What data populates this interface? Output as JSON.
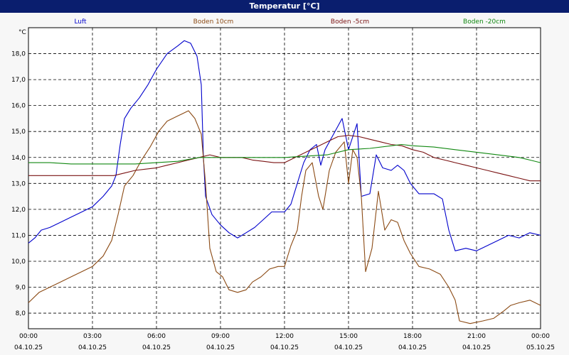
{
  "window": {
    "title": "Temperatur [°C]"
  },
  "chart_data": {
    "type": "line",
    "title": "Temperatur [°C]",
    "ylabel": "°C",
    "xlabel": "",
    "ylim": [
      7.4,
      19.0
    ],
    "xlim": [
      0,
      24
    ],
    "yticks": [
      {
        "v": 8.0,
        "label": "8,0"
      },
      {
        "v": 9.0,
        "label": "9,0"
      },
      {
        "v": 10.0,
        "label": "10,0"
      },
      {
        "v": 11.0,
        "label": "11,0"
      },
      {
        "v": 12.0,
        "label": "12,0"
      },
      {
        "v": 13.0,
        "label": "13,0"
      },
      {
        "v": 14.0,
        "label": "14,0"
      },
      {
        "v": 15.0,
        "label": "15,0"
      },
      {
        "v": 16.0,
        "label": "16,0"
      },
      {
        "v": 17.0,
        "label": "17,0"
      },
      {
        "v": 18.0,
        "label": "18,0"
      }
    ],
    "xticks": [
      {
        "v": 0,
        "time": "00:00",
        "date": "04.10.25"
      },
      {
        "v": 3,
        "time": "03:00",
        "date": "04.10.25"
      },
      {
        "v": 6,
        "time": "06:00",
        "date": "04.10.25"
      },
      {
        "v": 9,
        "time": "09:00",
        "date": "04.10.25"
      },
      {
        "v": 12,
        "time": "12:00",
        "date": "04.10.25"
      },
      {
        "v": 15,
        "time": "15:00",
        "date": "04.10.25"
      },
      {
        "v": 18,
        "time": "18:00",
        "date": "04.10.25"
      },
      {
        "v": 21,
        "time": "21:00",
        "date": "04.10.25"
      },
      {
        "v": 24,
        "time": "00:00",
        "date": "05.10.25"
      }
    ],
    "grid": true,
    "legend_position": "top",
    "series": [
      {
        "name": "Luft",
        "color": "#0000cc",
        "points": [
          [
            0,
            10.7
          ],
          [
            0.3,
            10.9
          ],
          [
            0.6,
            11.2
          ],
          [
            1.0,
            11.3
          ],
          [
            1.5,
            11.5
          ],
          [
            2.0,
            11.7
          ],
          [
            2.5,
            11.9
          ],
          [
            3.0,
            12.1
          ],
          [
            3.5,
            12.5
          ],
          [
            3.9,
            12.9
          ],
          [
            4.1,
            13.3
          ],
          [
            4.3,
            14.5
          ],
          [
            4.5,
            15.5
          ],
          [
            4.8,
            15.9
          ],
          [
            5.2,
            16.3
          ],
          [
            5.6,
            16.8
          ],
          [
            6.0,
            17.4
          ],
          [
            6.5,
            18.0
          ],
          [
            7.0,
            18.3
          ],
          [
            7.3,
            18.5
          ],
          [
            7.6,
            18.4
          ],
          [
            7.9,
            17.9
          ],
          [
            8.1,
            16.8
          ],
          [
            8.2,
            14.0
          ],
          [
            8.3,
            12.5
          ],
          [
            8.6,
            11.8
          ],
          [
            9.0,
            11.4
          ],
          [
            9.4,
            11.1
          ],
          [
            9.8,
            10.9
          ],
          [
            10.2,
            11.1
          ],
          [
            10.6,
            11.3
          ],
          [
            11.0,
            11.6
          ],
          [
            11.4,
            11.9
          ],
          [
            12.0,
            11.9
          ],
          [
            12.3,
            12.2
          ],
          [
            12.6,
            13.0
          ],
          [
            12.9,
            13.8
          ],
          [
            13.2,
            14.3
          ],
          [
            13.5,
            14.5
          ],
          [
            13.7,
            13.7
          ],
          [
            13.9,
            14.3
          ],
          [
            14.3,
            14.9
          ],
          [
            14.7,
            15.5
          ],
          [
            15.0,
            14.3
          ],
          [
            15.2,
            14.8
          ],
          [
            15.4,
            15.3
          ],
          [
            15.6,
            12.5
          ],
          [
            16.0,
            12.6
          ],
          [
            16.3,
            14.1
          ],
          [
            16.6,
            13.6
          ],
          [
            17.0,
            13.5
          ],
          [
            17.3,
            13.7
          ],
          [
            17.6,
            13.5
          ],
          [
            17.9,
            13.0
          ],
          [
            18.3,
            12.6
          ],
          [
            19.0,
            12.6
          ],
          [
            19.4,
            12.4
          ],
          [
            19.7,
            11.2
          ],
          [
            20.0,
            10.4
          ],
          [
            20.5,
            10.5
          ],
          [
            21.0,
            10.4
          ],
          [
            21.5,
            10.6
          ],
          [
            22.0,
            10.8
          ],
          [
            22.5,
            11.0
          ],
          [
            23.0,
            10.9
          ],
          [
            23.5,
            11.1
          ],
          [
            24.0,
            11.0
          ]
        ]
      },
      {
        "name": "Boden 10cm",
        "color": "#8b4a14",
        "points": [
          [
            0,
            8.4
          ],
          [
            0.5,
            8.8
          ],
          [
            1.0,
            9.0
          ],
          [
            1.5,
            9.2
          ],
          [
            2.0,
            9.4
          ],
          [
            2.5,
            9.6
          ],
          [
            3.0,
            9.8
          ],
          [
            3.5,
            10.2
          ],
          [
            3.9,
            10.8
          ],
          [
            4.2,
            11.8
          ],
          [
            4.5,
            12.9
          ],
          [
            4.9,
            13.3
          ],
          [
            5.3,
            13.9
          ],
          [
            5.7,
            14.4
          ],
          [
            6.1,
            15.0
          ],
          [
            6.5,
            15.4
          ],
          [
            7.0,
            15.6
          ],
          [
            7.5,
            15.8
          ],
          [
            7.8,
            15.5
          ],
          [
            8.1,
            14.9
          ],
          [
            8.3,
            13.0
          ],
          [
            8.5,
            10.5
          ],
          [
            8.8,
            9.6
          ],
          [
            9.1,
            9.4
          ],
          [
            9.4,
            8.9
          ],
          [
            9.8,
            8.8
          ],
          [
            10.2,
            8.9
          ],
          [
            10.5,
            9.2
          ],
          [
            10.9,
            9.4
          ],
          [
            11.3,
            9.7
          ],
          [
            11.7,
            9.8
          ],
          [
            12.0,
            9.8
          ],
          [
            12.3,
            10.6
          ],
          [
            12.6,
            11.2
          ],
          [
            12.8,
            12.5
          ],
          [
            13.0,
            13.5
          ],
          [
            13.3,
            13.8
          ],
          [
            13.6,
            12.5
          ],
          [
            13.8,
            12.0
          ],
          [
            14.1,
            13.5
          ],
          [
            14.4,
            14.2
          ],
          [
            14.8,
            14.6
          ],
          [
            15.0,
            13.0
          ],
          [
            15.2,
            14.3
          ],
          [
            15.4,
            14.0
          ],
          [
            15.6,
            12.5
          ],
          [
            15.8,
            9.6
          ],
          [
            16.1,
            10.5
          ],
          [
            16.4,
            12.7
          ],
          [
            16.7,
            11.2
          ],
          [
            17.0,
            11.6
          ],
          [
            17.3,
            11.5
          ],
          [
            17.6,
            10.8
          ],
          [
            17.9,
            10.3
          ],
          [
            18.3,
            9.8
          ],
          [
            18.8,
            9.7
          ],
          [
            19.3,
            9.5
          ],
          [
            19.7,
            9.0
          ],
          [
            20.0,
            8.5
          ],
          [
            20.2,
            7.7
          ],
          [
            20.7,
            7.6
          ],
          [
            21.3,
            7.7
          ],
          [
            21.8,
            7.8
          ],
          [
            22.3,
            8.1
          ],
          [
            22.6,
            8.3
          ],
          [
            23.0,
            8.4
          ],
          [
            23.5,
            8.5
          ],
          [
            24.0,
            8.3
          ]
        ]
      },
      {
        "name": "Boden -5cm",
        "color": "#7a1212",
        "points": [
          [
            0,
            13.3
          ],
          [
            1.5,
            13.3
          ],
          [
            3.0,
            13.3
          ],
          [
            4.0,
            13.3
          ],
          [
            4.5,
            13.4
          ],
          [
            5.0,
            13.5
          ],
          [
            5.5,
            13.55
          ],
          [
            6.0,
            13.6
          ],
          [
            6.5,
            13.7
          ],
          [
            7.0,
            13.8
          ],
          [
            7.5,
            13.9
          ],
          [
            8.0,
            14.0
          ],
          [
            8.5,
            14.1
          ],
          [
            9.0,
            14.0
          ],
          [
            10.0,
            14.0
          ],
          [
            10.5,
            13.9
          ],
          [
            11.0,
            13.85
          ],
          [
            11.5,
            13.8
          ],
          [
            12.0,
            13.8
          ],
          [
            12.5,
            14.0
          ],
          [
            13.0,
            14.2
          ],
          [
            13.5,
            14.4
          ],
          [
            14.0,
            14.6
          ],
          [
            14.5,
            14.8
          ],
          [
            15.0,
            14.85
          ],
          [
            15.5,
            14.8
          ],
          [
            16.0,
            14.7
          ],
          [
            16.5,
            14.6
          ],
          [
            17.0,
            14.5
          ],
          [
            17.5,
            14.45
          ],
          [
            18.0,
            14.3
          ],
          [
            18.5,
            14.2
          ],
          [
            19.0,
            14.0
          ],
          [
            19.5,
            13.9
          ],
          [
            20.0,
            13.8
          ],
          [
            20.5,
            13.7
          ],
          [
            21.0,
            13.6
          ],
          [
            21.5,
            13.5
          ],
          [
            22.0,
            13.4
          ],
          [
            22.5,
            13.3
          ],
          [
            23.0,
            13.2
          ],
          [
            23.5,
            13.1
          ],
          [
            24.0,
            13.1
          ]
        ]
      },
      {
        "name": "Boden -20cm",
        "color": "#118811",
        "points": [
          [
            0,
            13.8
          ],
          [
            1.0,
            13.8
          ],
          [
            2.0,
            13.75
          ],
          [
            3.0,
            13.75
          ],
          [
            4.0,
            13.75
          ],
          [
            5.0,
            13.75
          ],
          [
            6.0,
            13.8
          ],
          [
            7.0,
            13.85
          ],
          [
            8.0,
            14.0
          ],
          [
            9.0,
            14.0
          ],
          [
            10.0,
            14.0
          ],
          [
            11.0,
            14.0
          ],
          [
            12.0,
            14.0
          ],
          [
            13.0,
            14.05
          ],
          [
            14.0,
            14.1
          ],
          [
            15.0,
            14.3
          ],
          [
            16.0,
            14.35
          ],
          [
            17.0,
            14.45
          ],
          [
            17.5,
            14.5
          ],
          [
            18.0,
            14.45
          ],
          [
            19.0,
            14.4
          ],
          [
            20.0,
            14.3
          ],
          [
            21.0,
            14.2
          ],
          [
            22.0,
            14.1
          ],
          [
            23.0,
            14.0
          ],
          [
            23.5,
            13.9
          ],
          [
            24.0,
            13.8
          ]
        ]
      }
    ]
  }
}
